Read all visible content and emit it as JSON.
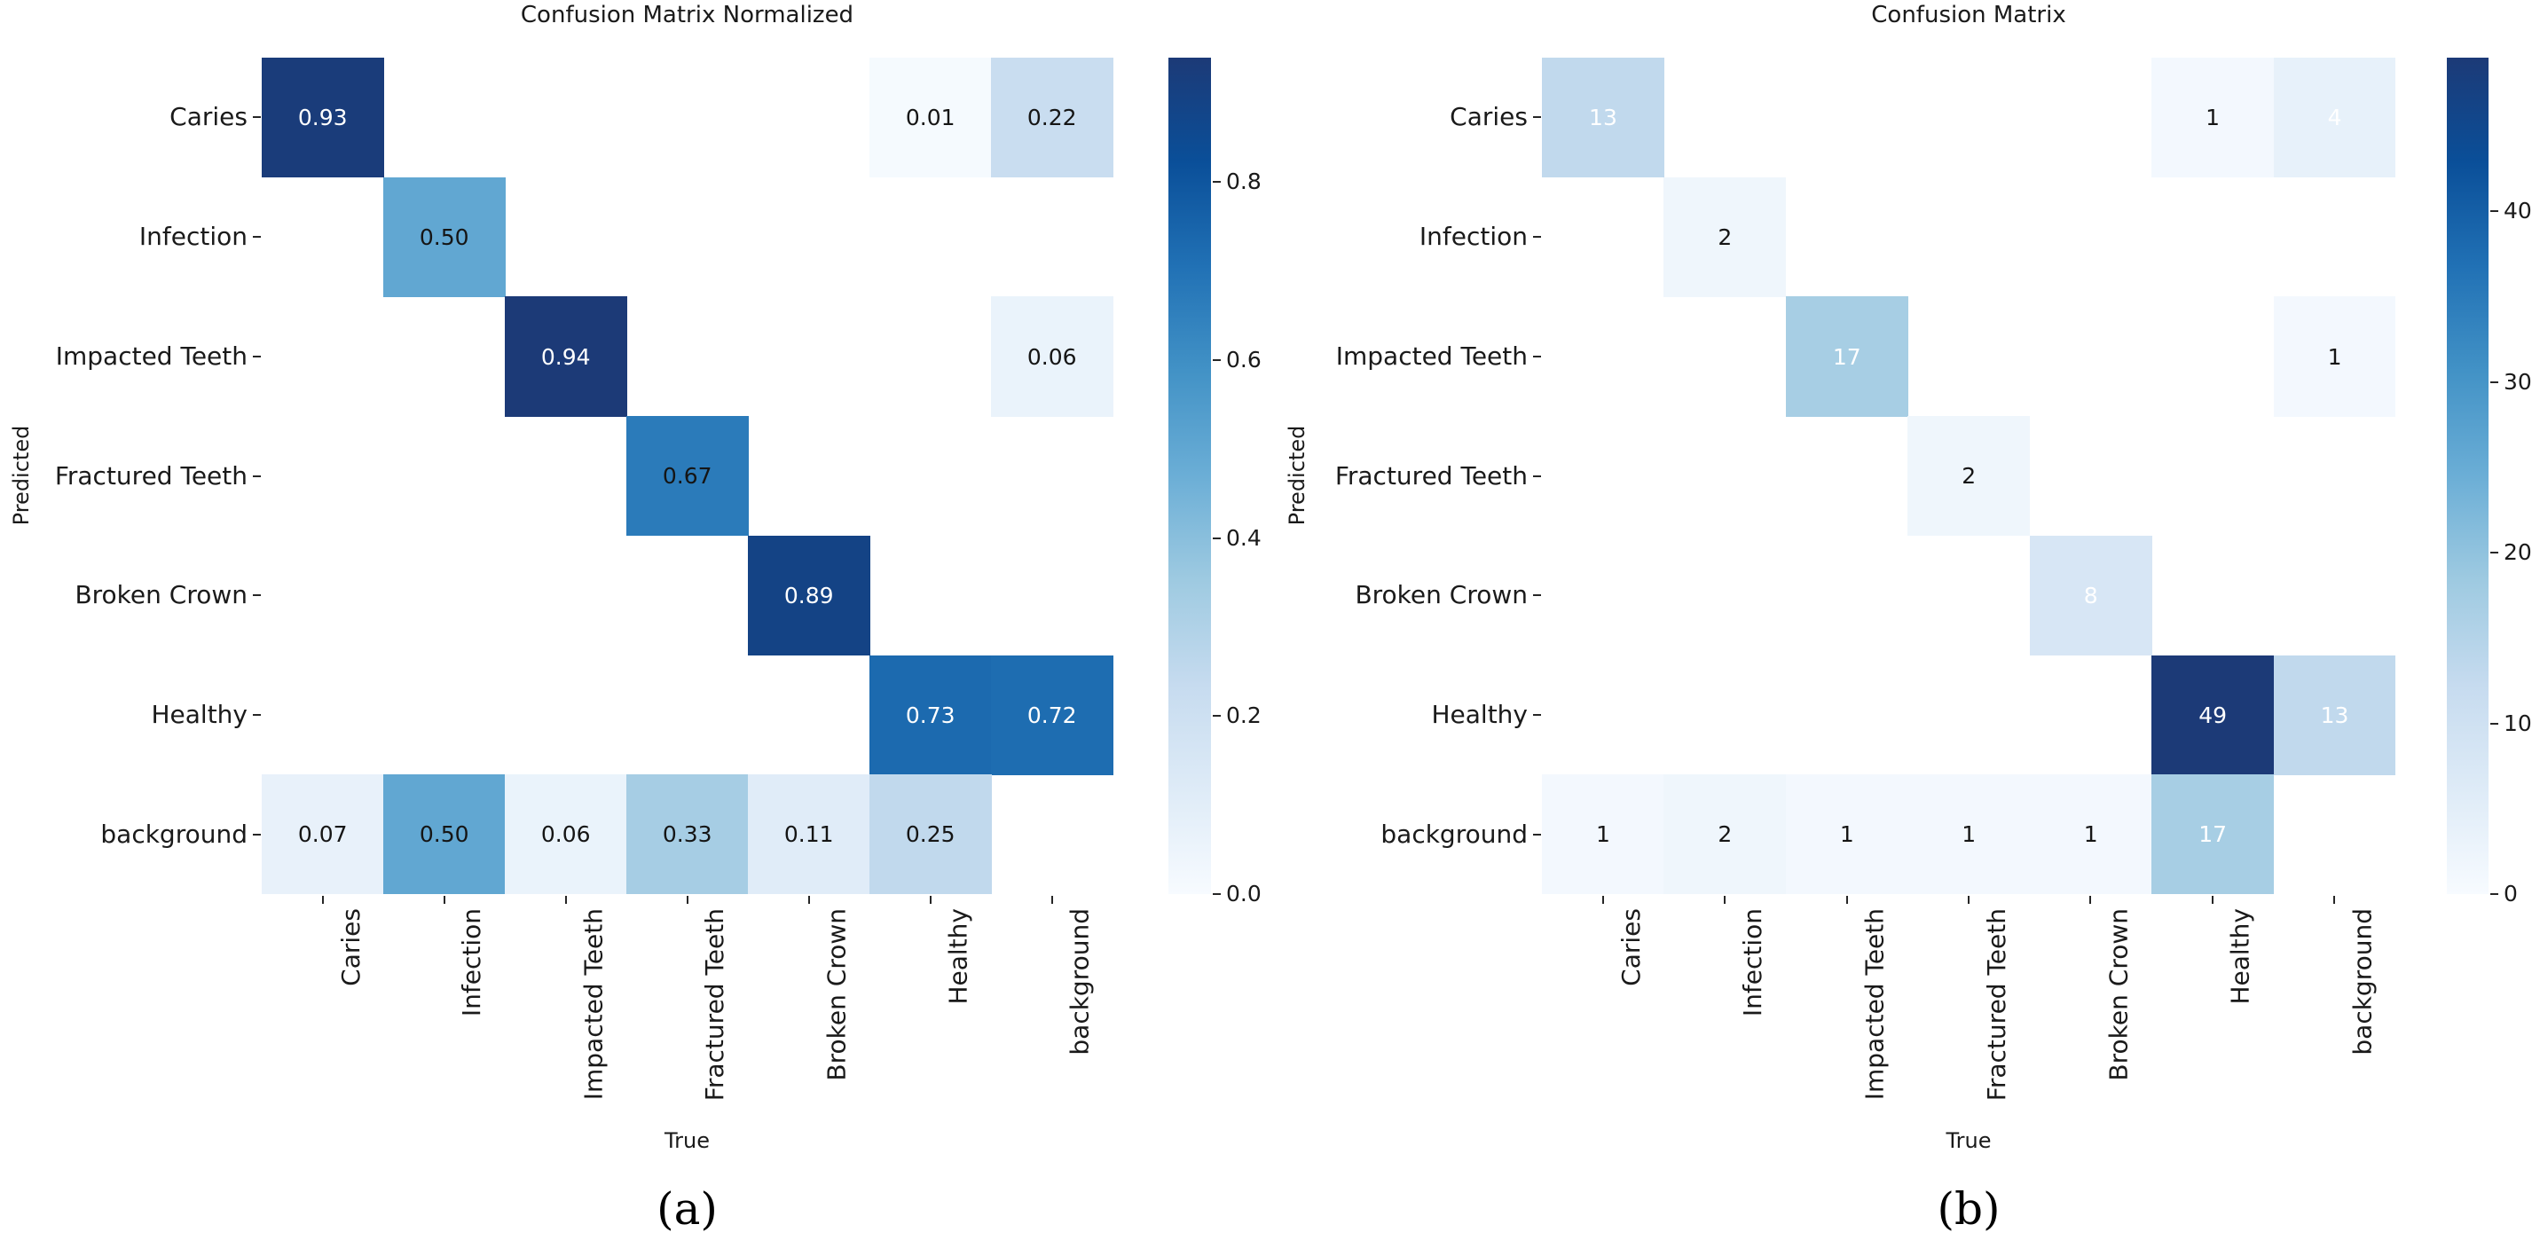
{
  "chart_data": [
    {
      "type": "heatmap",
      "panel": "a",
      "title": "Confusion Matrix Normalized",
      "xlabel": "True",
      "ylabel": "Predicted",
      "caption": "(a)",
      "x_categories": [
        "Caries",
        "Infection",
        "Impacted Teeth",
        "Fractured Teeth",
        "Broken Crown",
        "Healthy",
        "background"
      ],
      "y_categories": [
        "Caries",
        "Infection",
        "Impacted Teeth",
        "Fractured Teeth",
        "Broken Crown",
        "Healthy",
        "background"
      ],
      "vmin": 0,
      "vmax": 0.94,
      "colorbar_ticks": [
        {
          "value": 0.8,
          "label": "0.8"
        },
        {
          "value": 0.6,
          "label": "0.6"
        },
        {
          "value": 0.4,
          "label": "0.4"
        },
        {
          "value": 0.2,
          "label": "0.2"
        },
        {
          "value": 0.0,
          "label": "0.0"
        }
      ],
      "cells": [
        {
          "row": 0,
          "col": 0,
          "value": 0.93,
          "label": "0.93",
          "text_color": "#ffffff"
        },
        {
          "row": 0,
          "col": 5,
          "value": 0.01,
          "label": "0.01",
          "text_color": "#151515"
        },
        {
          "row": 0,
          "col": 6,
          "value": 0.22,
          "label": "0.22",
          "text_color": "#151515"
        },
        {
          "row": 1,
          "col": 1,
          "value": 0.5,
          "label": "0.50",
          "text_color": "#151515"
        },
        {
          "row": 2,
          "col": 2,
          "value": 0.94,
          "label": "0.94",
          "text_color": "#ffffff"
        },
        {
          "row": 2,
          "col": 6,
          "value": 0.06,
          "label": "0.06",
          "text_color": "#151515"
        },
        {
          "row": 3,
          "col": 3,
          "value": 0.67,
          "label": "0.67",
          "text_color": "#151515"
        },
        {
          "row": 4,
          "col": 4,
          "value": 0.89,
          "label": "0.89",
          "text_color": "#ffffff"
        },
        {
          "row": 5,
          "col": 5,
          "value": 0.73,
          "label": "0.73",
          "text_color": "#ffffff"
        },
        {
          "row": 5,
          "col": 6,
          "value": 0.72,
          "label": "0.72",
          "text_color": "#ffffff"
        },
        {
          "row": 6,
          "col": 0,
          "value": 0.07,
          "label": "0.07",
          "text_color": "#151515"
        },
        {
          "row": 6,
          "col": 1,
          "value": 0.5,
          "label": "0.50",
          "text_color": "#151515"
        },
        {
          "row": 6,
          "col": 2,
          "value": 0.06,
          "label": "0.06",
          "text_color": "#151515"
        },
        {
          "row": 6,
          "col": 3,
          "value": 0.33,
          "label": "0.33",
          "text_color": "#151515"
        },
        {
          "row": 6,
          "col": 4,
          "value": 0.11,
          "label": "0.11",
          "text_color": "#151515"
        },
        {
          "row": 6,
          "col": 5,
          "value": 0.25,
          "label": "0.25",
          "text_color": "#151515"
        }
      ]
    },
    {
      "type": "heatmap",
      "panel": "b",
      "title": "Confusion Matrix",
      "xlabel": "True",
      "ylabel": "Predicted",
      "caption": "(b)",
      "x_categories": [
        "Caries",
        "Infection",
        "Impacted Teeth",
        "Fractured Teeth",
        "Broken Crown",
        "Healthy",
        "background"
      ],
      "y_categories": [
        "Caries",
        "Infection",
        "Impacted Teeth",
        "Fractured Teeth",
        "Broken Crown",
        "Healthy",
        "background"
      ],
      "vmin": 0,
      "vmax": 49,
      "colorbar_ticks": [
        {
          "value": 40,
          "label": "40"
        },
        {
          "value": 30,
          "label": "30"
        },
        {
          "value": 20,
          "label": "20"
        },
        {
          "value": 10,
          "label": "10"
        },
        {
          "value": 0,
          "label": "0"
        }
      ],
      "cells": [
        {
          "row": 0,
          "col": 0,
          "value": 13,
          "label": "13",
          "text_color": "#ffffff"
        },
        {
          "row": 0,
          "col": 5,
          "value": 1,
          "label": "1",
          "text_color": "#151515"
        },
        {
          "row": 0,
          "col": 6,
          "value": 4,
          "label": "4",
          "text_color": "#ffffff"
        },
        {
          "row": 1,
          "col": 1,
          "value": 2,
          "label": "2",
          "text_color": "#151515"
        },
        {
          "row": 2,
          "col": 2,
          "value": 17,
          "label": "17",
          "text_color": "#ffffff"
        },
        {
          "row": 2,
          "col": 6,
          "value": 1,
          "label": "1",
          "text_color": "#151515"
        },
        {
          "row": 3,
          "col": 3,
          "value": 2,
          "label": "2",
          "text_color": "#151515"
        },
        {
          "row": 4,
          "col": 4,
          "value": 8,
          "label": "8",
          "text_color": "#ffffff"
        },
        {
          "row": 5,
          "col": 5,
          "value": 49,
          "label": "49",
          "text_color": "#ffffff"
        },
        {
          "row": 5,
          "col": 6,
          "value": 13,
          "label": "13",
          "text_color": "#ffffff"
        },
        {
          "row": 6,
          "col": 0,
          "value": 1,
          "label": "1",
          "text_color": "#151515"
        },
        {
          "row": 6,
          "col": 1,
          "value": 2,
          "label": "2",
          "text_color": "#151515"
        },
        {
          "row": 6,
          "col": 2,
          "value": 1,
          "label": "1",
          "text_color": "#151515"
        },
        {
          "row": 6,
          "col": 3,
          "value": 1,
          "label": "1",
          "text_color": "#151515"
        },
        {
          "row": 6,
          "col": 4,
          "value": 1,
          "label": "1",
          "text_color": "#151515"
        },
        {
          "row": 6,
          "col": 5,
          "value": 17,
          "label": "17",
          "text_color": "#ffffff"
        }
      ]
    }
  ],
  "style": {
    "colormap_name": "Blues",
    "colormap_stops": [
      [
        0.0,
        "#f7fbff"
      ],
      [
        0.125,
        "#deebf7"
      ],
      [
        0.25,
        "#c6dbef"
      ],
      [
        0.375,
        "#9ecae1"
      ],
      [
        0.5,
        "#6baed6"
      ],
      [
        0.625,
        "#4292c6"
      ],
      [
        0.75,
        "#2171b5"
      ],
      [
        0.875,
        "#0a4f99"
      ],
      [
        1.0,
        "#1c3a77"
      ]
    ],
    "empty_cell_color": "#ffffff",
    "tick_color": "#262626",
    "label_color": "#1a1a1a"
  }
}
